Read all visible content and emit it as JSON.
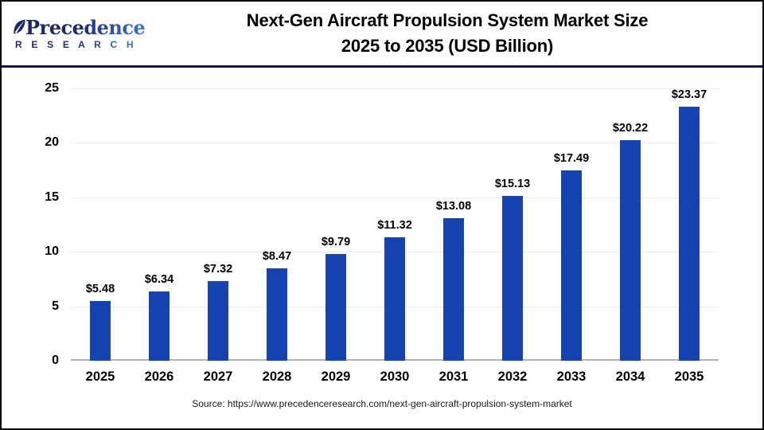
{
  "logo": {
    "name": "Precedence",
    "subname": "R E S E A R C H"
  },
  "header": {
    "title_line1": "Next-Gen Aircraft Propulsion System Market Size",
    "title_line2": "2025 to 2035 (USD Billion)"
  },
  "footer": {
    "source": "Source: https://www.precedenceresearch.com/next-gen-aircraft-propulsion-system-market"
  },
  "colors": {
    "bar": "#1544B2",
    "separator": "#11174A",
    "gridline": "#ECECEC",
    "axis_line": "#B3B3B3",
    "logo_dark": "#1C2A6A",
    "logo_light": "#3E74DB"
  },
  "chart_data": {
    "type": "bar",
    "title": "Next-Gen Aircraft Propulsion System Market Size 2025 to 2035 (USD Billion)",
    "xlabel": "",
    "ylabel": "",
    "categories": [
      "2025",
      "2026",
      "2027",
      "2028",
      "2029",
      "2030",
      "2031",
      "2032",
      "2033",
      "2034",
      "2035"
    ],
    "values": [
      5.48,
      6.34,
      7.32,
      8.47,
      9.79,
      11.32,
      13.08,
      15.13,
      17.49,
      20.22,
      23.37
    ],
    "value_labels": [
      "$5.48",
      "$6.34",
      "$7.32",
      "$8.47",
      "$9.79",
      "$11.32",
      "$13.08",
      "$15.13",
      "$17.49",
      "$20.22",
      "$23.37"
    ],
    "ylim": [
      0,
      25
    ],
    "y_ticks": [
      0,
      5,
      10,
      15,
      20,
      25
    ],
    "grid": true,
    "legend_position": "none",
    "bar_color": "#1544B2"
  }
}
